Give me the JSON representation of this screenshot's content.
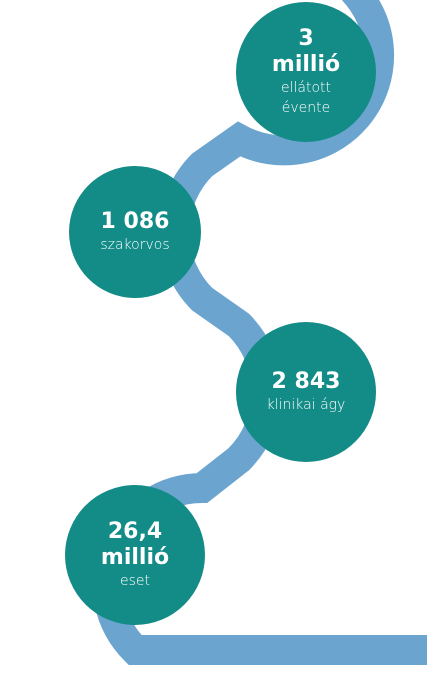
{
  "items": [
    {
      "value": [
        "3",
        "millió"
      ],
      "label": [
        "ellátott",
        "évente"
      ]
    },
    {
      "value": [
        "1 086"
      ],
      "label": [
        "szakorvos"
      ]
    },
    {
      "value": [
        "2 843"
      ],
      "label": [
        "klinikai ágy"
      ]
    },
    {
      "value": [
        "26,4",
        "millió"
      ],
      "label": [
        "eset"
      ]
    }
  ]
}
